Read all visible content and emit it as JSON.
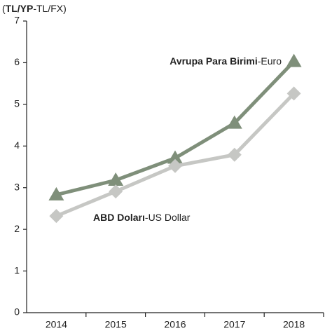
{
  "chart_data": {
    "type": "line",
    "title": [
      "(",
      "TL/YP",
      "-TL/FX)"
    ],
    "categories": [
      "2014",
      "2015",
      "2016",
      "2017",
      "2018"
    ],
    "series": [
      {
        "name": [
          "Avrupa Para Birimi",
          "-Euro"
        ],
        "color": "#7f8f7a",
        "marker": "triangle",
        "values": [
          2.83,
          3.18,
          3.71,
          4.55,
          6.03
        ]
      },
      {
        "name": [
          "ABD Doları",
          "-US Dollar"
        ],
        "color": "#c6c7c4",
        "marker": "diamond",
        "values": [
          2.32,
          2.91,
          3.52,
          3.79,
          5.26
        ]
      }
    ],
    "ylim": [
      0,
      7
    ],
    "yticks": [
      0,
      1,
      2,
      3,
      4,
      5,
      6,
      7
    ],
    "grid": false
  }
}
